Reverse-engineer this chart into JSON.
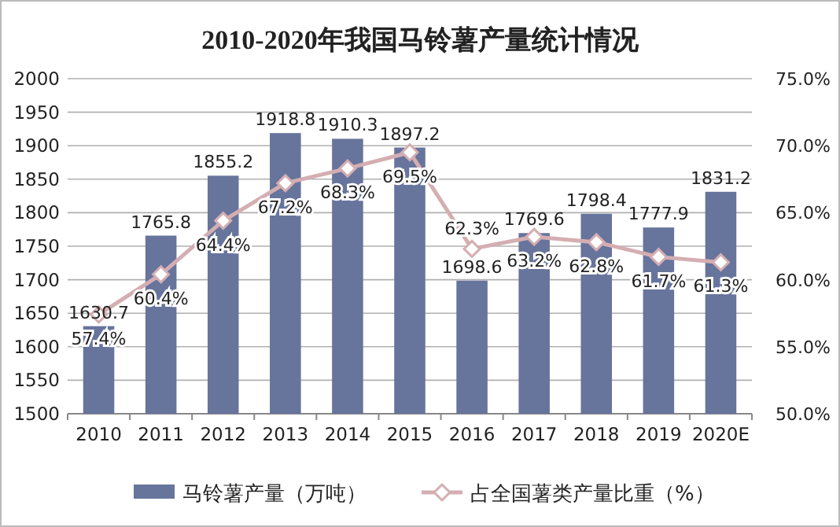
{
  "chart_data": {
    "type": "bar",
    "title": "2010-2020年我国马铃薯产量统计情况",
    "categories": [
      "2010",
      "2011",
      "2012",
      "2013",
      "2014",
      "2015",
      "2016",
      "2017",
      "2018",
      "2019",
      "2020E"
    ],
    "series": [
      {
        "name": "马铃薯产量（万吨）",
        "color": "#67749c",
        "values": [
          1630.7,
          1765.8,
          1855.2,
          1918.8,
          1910.3,
          1897.2,
          1698.6,
          1769.6,
          1798.4,
          1777.9,
          1831.2
        ],
        "value_labels": [
          "1630.7",
          "1765.8",
          "1855.2",
          "1918.8",
          "1910.3",
          "1897.2",
          "1698.6",
          "1769.6",
          "1798.4",
          "1777.9",
          "1831.2"
        ]
      },
      {
        "name": "占全国薯类产量比重（%）",
        "type": "line",
        "axis": "y2",
        "color": "#d4aeb2",
        "marker": "diamond",
        "values": [
          57.4,
          60.4,
          64.4,
          67.2,
          68.3,
          69.5,
          62.3,
          63.2,
          62.8,
          61.7,
          61.3
        ],
        "value_labels": [
          "57.4%",
          "60.4%",
          "64.4%",
          "67.2%",
          "68.3%",
          "69.5%",
          "62.3%",
          "63.2%",
          "62.8%",
          "61.7%",
          "61.3%"
        ]
      }
    ],
    "ylim": [
      1500,
      2000
    ],
    "yticks": [
      1500,
      1550,
      1600,
      1650,
      1700,
      1750,
      1800,
      1850,
      1900,
      1950,
      2000
    ],
    "y2lim": [
      50,
      75
    ],
    "y2ticks": [
      {
        "value": 50,
        "label": "50.0%"
      },
      {
        "value": 55,
        "label": "55.0%"
      },
      {
        "value": 60,
        "label": "60.0%"
      },
      {
        "value": 65,
        "label": "65.0%"
      },
      {
        "value": 70,
        "label": "70.0%"
      },
      {
        "value": 75,
        "label": "75.0%"
      }
    ],
    "grid": "y",
    "legend": "bottom"
  }
}
